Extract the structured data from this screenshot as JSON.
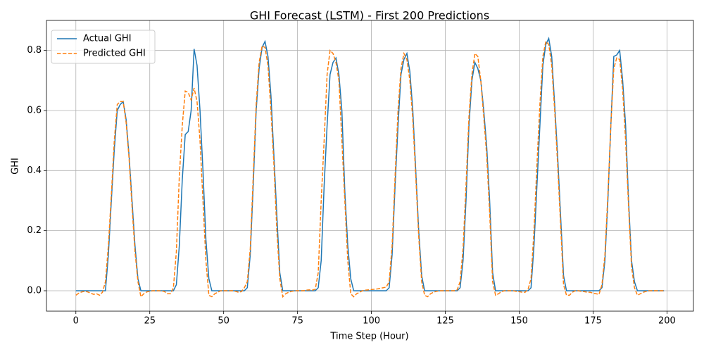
{
  "chart_data": {
    "type": "line",
    "title": "GHI Forecast (LSTM) - First 200 Predictions",
    "x_label": "Time Step (Hour)",
    "y_label": "GHI",
    "x": [
      0,
      1,
      2,
      3,
      4,
      5,
      6,
      7,
      8,
      9,
      10,
      11,
      12,
      13,
      14,
      15,
      16,
      17,
      18,
      19,
      20,
      21,
      22,
      23,
      24,
      25,
      26,
      27,
      28,
      29,
      30,
      31,
      32,
      33,
      34,
      35,
      36,
      37,
      38,
      39,
      40,
      41,
      42,
      43,
      44,
      45,
      46,
      47,
      48,
      49,
      50,
      51,
      52,
      53,
      54,
      55,
      56,
      57,
      58,
      59,
      60,
      61,
      62,
      63,
      64,
      65,
      66,
      67,
      68,
      69,
      70,
      71,
      72,
      73,
      74,
      75,
      76,
      77,
      78,
      79,
      80,
      81,
      82,
      83,
      84,
      85,
      86,
      87,
      88,
      89,
      90,
      91,
      92,
      93,
      94,
      95,
      96,
      97,
      98,
      99,
      100,
      101,
      102,
      103,
      104,
      105,
      106,
      107,
      108,
      109,
      110,
      111,
      112,
      113,
      114,
      115,
      116,
      117,
      118,
      119,
      120,
      121,
      122,
      123,
      124,
      125,
      126,
      127,
      128,
      129,
      130,
      131,
      132,
      133,
      134,
      135,
      136,
      137,
      138,
      139,
      140,
      141,
      142,
      143,
      144,
      145,
      146,
      147,
      148,
      149,
      150,
      151,
      152,
      153,
      154,
      155,
      156,
      157,
      158,
      159,
      160,
      161,
      162,
      163,
      164,
      165,
      166,
      167,
      168,
      169,
      170,
      171,
      172,
      173,
      174,
      175,
      176,
      177,
      178,
      179,
      180,
      181,
      182,
      183,
      184,
      185,
      186,
      187,
      188,
      189,
      190,
      191,
      192,
      193,
      194,
      195,
      196,
      197,
      198,
      199
    ],
    "series": [
      {
        "name": "Actual GHI",
        "color": "#1f77b4",
        "dashed": false,
        "values": [
          0,
          0,
          0,
          0,
          0,
          0,
          0,
          0,
          0,
          0,
          0,
          0.12,
          0.3,
          0.47,
          0.6,
          0.62,
          0.63,
          0.57,
          0.45,
          0.3,
          0.15,
          0.04,
          0,
          0,
          0,
          0,
          0,
          0,
          0,
          0,
          0,
          0,
          0,
          0,
          0.02,
          0.15,
          0.37,
          0.52,
          0.53,
          0.6,
          0.805,
          0.75,
          0.6,
          0.4,
          0.17,
          0.04,
          0,
          0,
          0,
          0,
          0,
          0,
          0,
          0,
          0,
          0,
          0,
          0,
          0.01,
          0.12,
          0.35,
          0.6,
          0.74,
          0.81,
          0.83,
          0.78,
          0.65,
          0.45,
          0.25,
          0.06,
          0,
          0,
          0,
          0,
          0,
          0,
          0,
          0,
          0,
          0,
          0,
          0,
          0.01,
          0.1,
          0.35,
          0.55,
          0.72,
          0.76,
          0.775,
          0.72,
          0.6,
          0.33,
          0.15,
          0.04,
          0,
          0,
          0,
          0,
          0,
          0,
          0,
          0,
          0,
          0,
          0,
          0,
          0.01,
          0.12,
          0.35,
          0.55,
          0.72,
          0.77,
          0.79,
          0.73,
          0.6,
          0.4,
          0.2,
          0.05,
          0,
          0,
          0,
          0,
          0,
          0,
          0,
          0,
          0,
          0,
          0,
          0,
          0.01,
          0.1,
          0.3,
          0.55,
          0.7,
          0.76,
          0.74,
          0.7,
          0.6,
          0.48,
          0.3,
          0.06,
          0,
          0,
          0,
          0,
          0,
          0,
          0,
          0,
          0,
          0,
          0,
          0,
          0.01,
          0.15,
          0.35,
          0.55,
          0.75,
          0.82,
          0.84,
          0.78,
          0.62,
          0.45,
          0.25,
          0.05,
          0,
          0,
          0,
          0,
          0,
          0,
          0,
          0,
          0,
          0,
          0,
          0,
          0.01,
          0.1,
          0.3,
          0.55,
          0.78,
          0.785,
          0.8,
          0.7,
          0.55,
          0.3,
          0.1,
          0.03,
          0,
          0,
          0,
          0,
          0,
          0,
          0,
          0,
          0,
          0
        ]
      },
      {
        "name": "Predicted GHI",
        "color": "#ff7f0e",
        "dashed": true,
        "values": [
          -0.015,
          -0.008,
          -0.004,
          -0.002,
          -0.004,
          -0.008,
          -0.012,
          -0.01,
          -0.015,
          -0.005,
          0.03,
          0.15,
          0.32,
          0.5,
          0.62,
          0.63,
          0.63,
          0.56,
          0.44,
          0.28,
          0.13,
          0.03,
          -0.02,
          -0.01,
          -0.004,
          -0.002,
          0,
          0,
          0,
          0,
          -0.003,
          -0.01,
          -0.01,
          0.01,
          0.13,
          0.38,
          0.55,
          0.665,
          0.66,
          0.635,
          0.675,
          0.63,
          0.5,
          0.3,
          0.1,
          -0.015,
          -0.02,
          -0.01,
          -0.005,
          0,
          0,
          0,
          0,
          0,
          -0.002,
          -0.005,
          -0.003,
          0.01,
          0.03,
          0.14,
          0.38,
          0.62,
          0.76,
          0.815,
          0.81,
          0.75,
          0.6,
          0.42,
          0.2,
          0.04,
          -0.02,
          -0.01,
          -0.005,
          -0.002,
          0,
          0,
          0,
          0,
          0.002,
          0.003,
          0.002,
          0.005,
          0.06,
          0.3,
          0.5,
          0.72,
          0.8,
          0.79,
          0.76,
          0.7,
          0.5,
          0.3,
          0.1,
          -0.01,
          -0.02,
          -0.01,
          -0.005,
          0,
          0.002,
          0.003,
          0.004,
          0.005,
          0.006,
          0.008,
          0.01,
          0.012,
          0.03,
          0.15,
          0.38,
          0.6,
          0.74,
          0.79,
          0.77,
          0.7,
          0.57,
          0.38,
          0.18,
          0.03,
          -0.015,
          -0.02,
          -0.01,
          -0.005,
          -0.002,
          0,
          0,
          0,
          0,
          0,
          0,
          0.003,
          0.03,
          0.14,
          0.35,
          0.58,
          0.72,
          0.79,
          0.78,
          0.7,
          0.58,
          0.45,
          0.26,
          0.03,
          -0.015,
          -0.01,
          -0.003,
          0,
          0,
          0,
          0,
          -0.002,
          -0.003,
          -0.005,
          -0.005,
          0.005,
          0.04,
          0.2,
          0.42,
          0.62,
          0.78,
          0.83,
          0.82,
          0.75,
          0.6,
          0.42,
          0.22,
          0.02,
          -0.015,
          -0.015,
          -0.005,
          0,
          0,
          -0.002,
          -0.003,
          -0.005,
          -0.005,
          -0.008,
          -0.01,
          -0.012,
          0.02,
          0.12,
          0.32,
          0.55,
          0.74,
          0.775,
          0.77,
          0.67,
          0.5,
          0.28,
          0.08,
          0.01,
          -0.015,
          -0.01,
          -0.005,
          -0.002,
          0,
          0,
          0,
          0,
          0,
          0
        ]
      }
    ],
    "xlim": [
      -9.95,
      208.95
    ],
    "ylim": [
      -0.068,
      0.9
    ],
    "xticks": [
      0,
      25,
      50,
      75,
      100,
      125,
      150,
      175,
      200
    ],
    "yticks": [
      {
        "value": 0,
        "label": "0.0"
      },
      {
        "value": 0.2,
        "label": "0.2"
      },
      {
        "value": 0.4,
        "label": "0.4"
      },
      {
        "value": 0.6,
        "label": "0.6"
      },
      {
        "value": 0.8,
        "label": "0.8"
      }
    ],
    "grid": true,
    "legend": "upper left"
  }
}
